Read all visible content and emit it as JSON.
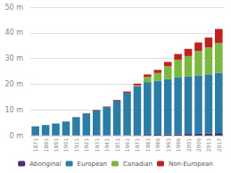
{
  "chart_data": {
    "type": "bar",
    "stacked": true,
    "categories": [
      "1871",
      "1881",
      "1891",
      "1901",
      "1911",
      "1921",
      "1931",
      "1941",
      "1951",
      "1961",
      "1971",
      "1981",
      "1986",
      "1991",
      "1996",
      "2001",
      "2006",
      "2011",
      "2017"
    ],
    "series": [
      {
        "name": "Aboriginal",
        "color": "#4a3070",
        "values": [
          0.1,
          0.1,
          0.1,
          0.1,
          0.1,
          0.1,
          0.1,
          0.1,
          0.1,
          0.15,
          0.22,
          0.3,
          0.37,
          0.47,
          0.55,
          0.65,
          0.75,
          0.85,
          1.0
        ]
      },
      {
        "name": "European",
        "color": "#2b7da5",
        "values": [
          3.5,
          4.0,
          4.6,
          5.4,
          7.0,
          8.5,
          9.8,
          11.0,
          13.5,
          16.5,
          19.0,
          20.5,
          21.0,
          21.5,
          22.0,
          22.3,
          22.7,
          23.0,
          23.5
        ]
      },
      {
        "name": "Canadian",
        "color": "#7ab840",
        "values": [
          0.0,
          0.0,
          0.0,
          0.0,
          0.0,
          0.0,
          0.0,
          0.0,
          0.0,
          0.0,
          0.3,
          2.0,
          3.0,
          5.0,
          7.0,
          8.0,
          9.5,
          10.5,
          11.5
        ]
      },
      {
        "name": "Non-European",
        "color": "#c02020",
        "values": [
          0.0,
          0.0,
          0.0,
          0.0,
          0.1,
          0.1,
          0.15,
          0.2,
          0.3,
          0.5,
          0.7,
          1.0,
          1.2,
          1.7,
          2.2,
          2.8,
          3.3,
          3.8,
          5.5
        ]
      }
    ],
    "ylim": [
      0,
      50
    ],
    "yticks": [
      {
        "value": 0,
        "label": "0 m"
      },
      {
        "value": 10,
        "label": "10 m"
      },
      {
        "value": 20,
        "label": "20 m"
      },
      {
        "value": 30,
        "label": "30 m"
      },
      {
        "value": 40,
        "label": "40 m"
      },
      {
        "value": 50,
        "label": "50 m"
      }
    ],
    "grid": true,
    "legend": "bottom"
  }
}
